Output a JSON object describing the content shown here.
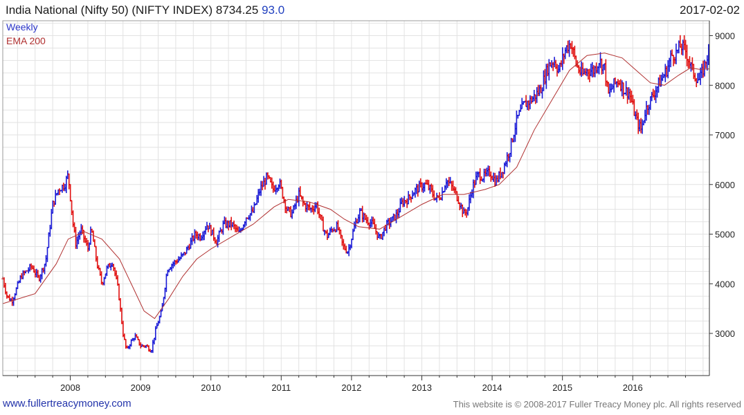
{
  "header": {
    "title": "India National (Nifty 50) (NIFTY INDEX) 8734.25",
    "change": "93.0",
    "date": "2017-02-02"
  },
  "legend": {
    "weekly": "Weekly",
    "ema": "EMA 200"
  },
  "footer": {
    "site": "www.fullertreacymoney.com",
    "copyright": "This website is © 2008-2017 Fuller Treacy Money plc. All rights reserved"
  },
  "colors": {
    "up": "#1a1ad6",
    "down": "#e01010",
    "ema": "#b03030",
    "grid": "#e2e2e2",
    "axis": "#333333"
  },
  "chart_data": {
    "type": "ohlc-weekly",
    "title": "India National (Nifty 50) (NIFTY INDEX) 8734.25",
    "xlim": [
      2007.04,
      2017.09
    ],
    "ylim": [
      2150,
      9300
    ],
    "yticks": [
      3000,
      4000,
      5000,
      6000,
      7000,
      8000,
      9000
    ],
    "ytick_labels": [
      "3000",
      "4000",
      "5000",
      "6000",
      "7000",
      "8000",
      "9000"
    ],
    "xticks": [
      2008,
      2009,
      2010,
      2011,
      2012,
      2013,
      2014,
      2015,
      2016
    ],
    "xtick_labels": [
      "2008",
      "2009",
      "2010",
      "2011",
      "2012",
      "2013",
      "2014",
      "2015",
      "2016"
    ],
    "grid": true,
    "series": [
      {
        "name": "Weekly",
        "anchors": [
          [
            2007.04,
            4100
          ],
          [
            2007.1,
            3750
          ],
          [
            2007.17,
            3650
          ],
          [
            2007.3,
            4150
          ],
          [
            2007.45,
            4350
          ],
          [
            2007.55,
            4100
          ],
          [
            2007.65,
            4450
          ],
          [
            2007.75,
            5600
          ],
          [
            2007.83,
            5900
          ],
          [
            2007.92,
            6000
          ],
          [
            2007.97,
            6200
          ],
          [
            2008.04,
            5200
          ],
          [
            2008.08,
            4800
          ],
          [
            2008.15,
            5100
          ],
          [
            2008.25,
            4700
          ],
          [
            2008.3,
            5100
          ],
          [
            2008.38,
            4400
          ],
          [
            2008.45,
            4000
          ],
          [
            2008.52,
            4300
          ],
          [
            2008.6,
            4450
          ],
          [
            2008.68,
            3900
          ],
          [
            2008.75,
            3000
          ],
          [
            2008.8,
            2650
          ],
          [
            2008.85,
            2800
          ],
          [
            2008.92,
            2950
          ],
          [
            2009.0,
            2750
          ],
          [
            2009.08,
            2750
          ],
          [
            2009.15,
            2650
          ],
          [
            2009.22,
            3100
          ],
          [
            2009.3,
            3450
          ],
          [
            2009.38,
            4300
          ],
          [
            2009.45,
            4400
          ],
          [
            2009.55,
            4500
          ],
          [
            2009.62,
            4600
          ],
          [
            2009.7,
            4800
          ],
          [
            2009.78,
            5000
          ],
          [
            2009.85,
            4950
          ],
          [
            2009.95,
            5200
          ],
          [
            2010.08,
            4850
          ],
          [
            2010.18,
            5200
          ],
          [
            2010.3,
            5200
          ],
          [
            2010.4,
            5000
          ],
          [
            2010.5,
            5350
          ],
          [
            2010.6,
            5450
          ],
          [
            2010.7,
            5900
          ],
          [
            2010.8,
            6150
          ],
          [
            2010.88,
            5900
          ],
          [
            2010.97,
            6050
          ],
          [
            2011.08,
            5500
          ],
          [
            2011.15,
            5400
          ],
          [
            2011.25,
            5800
          ],
          [
            2011.32,
            5600
          ],
          [
            2011.42,
            5500
          ],
          [
            2011.5,
            5600
          ],
          [
            2011.58,
            5200
          ],
          [
            2011.65,
            4950
          ],
          [
            2011.72,
            5100
          ],
          [
            2011.8,
            5150
          ],
          [
            2011.88,
            4750
          ],
          [
            2011.95,
            4650
          ],
          [
            2012.05,
            5200
          ],
          [
            2012.12,
            5450
          ],
          [
            2012.2,
            5300
          ],
          [
            2012.3,
            5200
          ],
          [
            2012.4,
            4900
          ],
          [
            2012.48,
            5150
          ],
          [
            2012.55,
            5250
          ],
          [
            2012.65,
            5400
          ],
          [
            2012.72,
            5650
          ],
          [
            2012.8,
            5700
          ],
          [
            2012.88,
            5850
          ],
          [
            2012.97,
            5950
          ],
          [
            2013.05,
            6000
          ],
          [
            2013.12,
            5900
          ],
          [
            2013.2,
            5700
          ],
          [
            2013.28,
            5800
          ],
          [
            2013.35,
            6100
          ],
          [
            2013.45,
            5900
          ],
          [
            2013.52,
            5700
          ],
          [
            2013.6,
            5400
          ],
          [
            2013.65,
            5500
          ],
          [
            2013.72,
            5950
          ],
          [
            2013.8,
            6200
          ],
          [
            2013.88,
            6150
          ],
          [
            2013.97,
            6250
          ],
          [
            2014.05,
            6050
          ],
          [
            2014.15,
            6300
          ],
          [
            2014.25,
            6700
          ],
          [
            2014.35,
            7300
          ],
          [
            2014.45,
            7600
          ],
          [
            2014.55,
            7700
          ],
          [
            2014.62,
            7800
          ],
          [
            2014.7,
            7950
          ],
          [
            2014.8,
            8400
          ],
          [
            2014.88,
            8500
          ],
          [
            2014.95,
            8300
          ],
          [
            2015.05,
            8750
          ],
          [
            2015.12,
            8850
          ],
          [
            2015.2,
            8400
          ],
          [
            2015.28,
            8200
          ],
          [
            2015.35,
            8300
          ],
          [
            2015.45,
            8300
          ],
          [
            2015.52,
            8500
          ],
          [
            2015.6,
            8350
          ],
          [
            2015.65,
            7800
          ],
          [
            2015.72,
            8000
          ],
          [
            2015.8,
            8100
          ],
          [
            2015.88,
            7900
          ],
          [
            2015.95,
            7850
          ],
          [
            2016.05,
            7300
          ],
          [
            2016.12,
            7100
          ],
          [
            2016.18,
            7500
          ],
          [
            2016.25,
            7700
          ],
          [
            2016.32,
            7900
          ],
          [
            2016.4,
            8100
          ],
          [
            2016.48,
            8300
          ],
          [
            2016.55,
            8600
          ],
          [
            2016.62,
            8650
          ],
          [
            2016.68,
            8800
          ],
          [
            2016.75,
            8700
          ],
          [
            2016.82,
            8400
          ],
          [
            2016.88,
            8200
          ],
          [
            2016.95,
            8100
          ],
          [
            2017.02,
            8400
          ],
          [
            2017.09,
            8734
          ]
        ]
      },
      {
        "name": "EMA 200",
        "points": [
          [
            2007.04,
            3600
          ],
          [
            2007.5,
            3800
          ],
          [
            2007.8,
            4400
          ],
          [
            2007.97,
            4900
          ],
          [
            2008.2,
            5050
          ],
          [
            2008.45,
            4900
          ],
          [
            2008.7,
            4500
          ],
          [
            2008.9,
            3900
          ],
          [
            2009.05,
            3450
          ],
          [
            2009.2,
            3300
          ],
          [
            2009.4,
            3700
          ],
          [
            2009.6,
            4150
          ],
          [
            2009.8,
            4500
          ],
          [
            2010.0,
            4700
          ],
          [
            2010.3,
            4950
          ],
          [
            2010.6,
            5200
          ],
          [
            2010.9,
            5550
          ],
          [
            2011.1,
            5700
          ],
          [
            2011.4,
            5650
          ],
          [
            2011.7,
            5500
          ],
          [
            2011.9,
            5300
          ],
          [
            2012.1,
            5150
          ],
          [
            2012.4,
            5100
          ],
          [
            2012.7,
            5350
          ],
          [
            2013.0,
            5600
          ],
          [
            2013.3,
            5800
          ],
          [
            2013.6,
            5800
          ],
          [
            2013.9,
            5900
          ],
          [
            2014.1,
            6000
          ],
          [
            2014.35,
            6350
          ],
          [
            2014.6,
            7100
          ],
          [
            2014.85,
            7700
          ],
          [
            2015.1,
            8300
          ],
          [
            2015.35,
            8600
          ],
          [
            2015.6,
            8650
          ],
          [
            2015.85,
            8550
          ],
          [
            2016.05,
            8300
          ],
          [
            2016.25,
            8050
          ],
          [
            2016.45,
            8000
          ],
          [
            2016.65,
            8200
          ],
          [
            2016.82,
            8350
          ],
          [
            2016.95,
            8320
          ],
          [
            2017.09,
            8330
          ]
        ]
      }
    ]
  }
}
